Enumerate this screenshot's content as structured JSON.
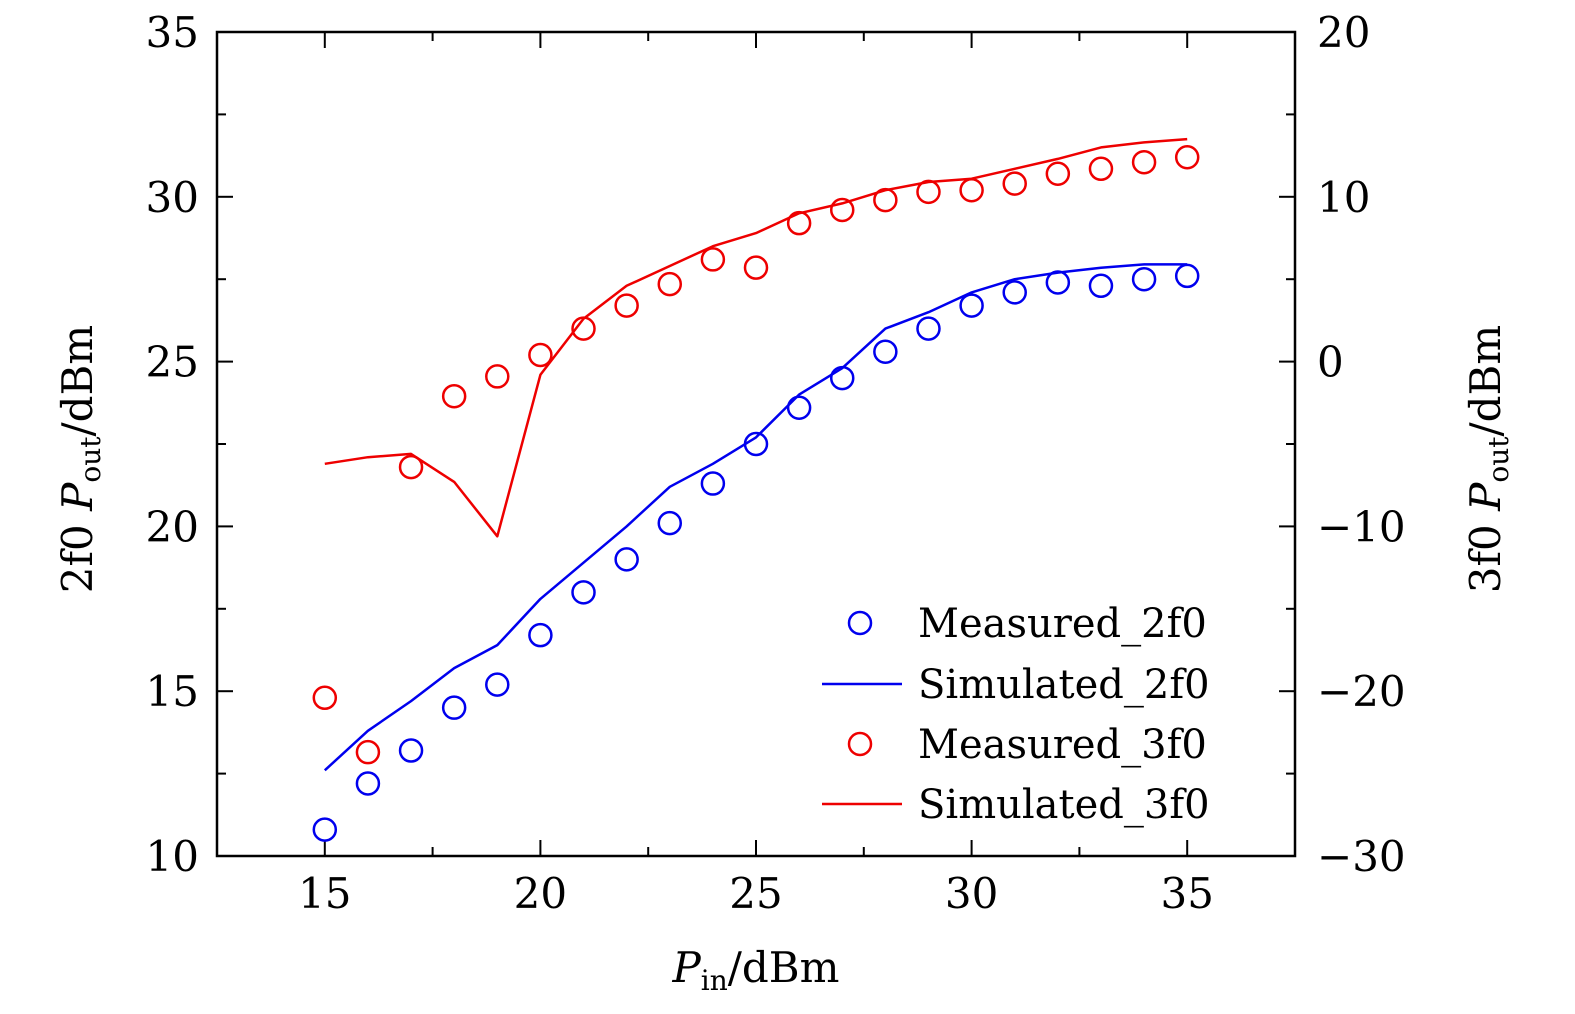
{
  "chart_data": {
    "type": "line",
    "title": "",
    "xlabel": "P_in/dBm",
    "xlabel_main": "P",
    "xlabel_sub": "in",
    "xlabel_unit": "/dBm",
    "ylabel_left": "2f0 P_out/dBm",
    "ylabel_left_prefix": "2f0 ",
    "ylabel_left_main": "P",
    "ylabel_left_sub": "out",
    "ylabel_left_unit": "/dBm",
    "ylabel_right": "3f0 P_out/dBm",
    "ylabel_right_prefix": "3f0 ",
    "ylabel_right_main": "P",
    "ylabel_right_sub": "out",
    "ylabel_right_unit": "/dBm",
    "xlim": [
      12.5,
      37.5
    ],
    "ylim_left": [
      10,
      35
    ],
    "ylim_right": [
      -30,
      20
    ],
    "x_ticks": [
      15,
      20,
      25,
      30,
      35
    ],
    "x_tick_labels": [
      "15",
      "20",
      "25",
      "30",
      "35"
    ],
    "y_left_ticks": [
      10,
      15,
      20,
      25,
      30,
      35
    ],
    "y_left_tick_labels": [
      "10",
      "15",
      "20",
      "25",
      "30",
      "35"
    ],
    "y_right_ticks": [
      -30,
      -20,
      -10,
      0,
      10,
      20
    ],
    "y_right_tick_labels": [
      "−30",
      "−20",
      "−10",
      "0",
      "10",
      "20"
    ],
    "legend_position": "bottom-right",
    "series": [
      {
        "name": "Measured_2f0",
        "kind": "scatter",
        "axis": "left",
        "color": "#0000ee",
        "x": [
          15,
          16,
          17,
          18,
          19,
          20,
          21,
          22,
          23,
          24,
          25,
          26,
          27,
          28,
          29,
          30,
          31,
          32,
          33,
          34,
          35
        ],
        "y": [
          10.8,
          12.2,
          13.2,
          14.5,
          15.2,
          16.7,
          18.0,
          19.0,
          20.1,
          21.3,
          22.5,
          23.6,
          24.5,
          25.3,
          26.0,
          26.7,
          27.1,
          27.4,
          27.3,
          27.5,
          27.6
        ]
      },
      {
        "name": "Simulated_2f0",
        "kind": "line",
        "axis": "left",
        "color": "#0000ee",
        "x": [
          15,
          16,
          17,
          18,
          19,
          20,
          21,
          22,
          23,
          24,
          25,
          26,
          27,
          28,
          29,
          30,
          31,
          32,
          33,
          34,
          35
        ],
        "y": [
          12.6,
          13.8,
          14.7,
          15.7,
          16.4,
          17.8,
          18.9,
          20.0,
          21.2,
          21.9,
          22.7,
          24.0,
          24.8,
          26.0,
          26.5,
          27.1,
          27.5,
          27.7,
          27.85,
          27.95,
          27.95
        ]
      },
      {
        "name": "Measured_3f0",
        "kind": "scatter",
        "axis": "right",
        "color": "#ee0000",
        "x": [
          15,
          16,
          17,
          18,
          19,
          20,
          21,
          22,
          23,
          24,
          25,
          26,
          27,
          28,
          29,
          30,
          31,
          32,
          33,
          34,
          35
        ],
        "y": [
          -20.4,
          -23.7,
          -6.4,
          -2.1,
          -0.9,
          0.4,
          2.0,
          3.4,
          4.7,
          6.2,
          5.7,
          8.4,
          9.2,
          9.8,
          10.3,
          10.4,
          10.8,
          11.4,
          11.7,
          12.1,
          12.4
        ]
      },
      {
        "name": "Simulated_3f0",
        "kind": "line",
        "axis": "right",
        "color": "#ee0000",
        "x": [
          15,
          16,
          17,
          18,
          19,
          20,
          21,
          22,
          23,
          24,
          25,
          26,
          27,
          28,
          29,
          30,
          31,
          32,
          33,
          34,
          35
        ],
        "y": [
          -6.2,
          -5.8,
          -5.6,
          -7.3,
          -10.6,
          -0.8,
          2.6,
          4.6,
          5.8,
          7.0,
          7.8,
          9.0,
          9.6,
          10.4,
          10.9,
          11.1,
          11.7,
          12.3,
          13.0,
          13.3,
          13.5
        ]
      }
    ]
  }
}
